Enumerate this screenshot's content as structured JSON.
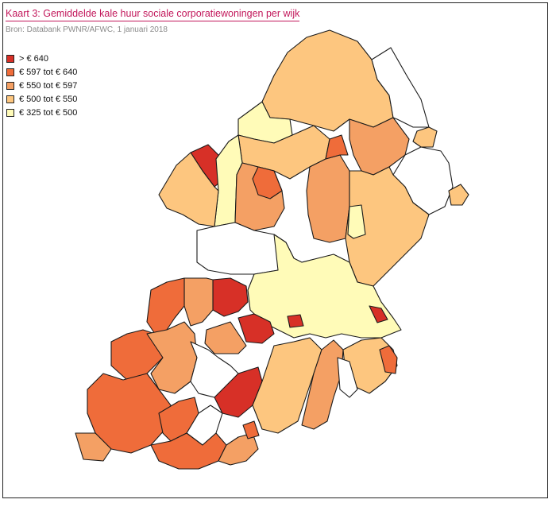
{
  "title": "Kaart 3: Gemiddelde kale huur sociale corporatiewoningen per wijk",
  "source": "Bron: Databank PWNR/AFWC, 1 januari 2018",
  "legend": [
    {
      "label": "> € 640",
      "color": "#d73027"
    },
    {
      "label": "€ 597 tot € 640",
      "color": "#ef6c3a"
    },
    {
      "label": "€ 550 tot € 597",
      "color": "#f4a064"
    },
    {
      "label": "€ 500 tot € 550",
      "color": "#fdc67f"
    },
    {
      "label": "€ 325 tot € 500",
      "color": "#fffbb8"
    }
  ],
  "colors": {
    "class1": "#d73027",
    "class2": "#ef6c3a",
    "class3": "#f4a064",
    "class4": "#fdc67f",
    "class5": "#fffbb8",
    "nodata": "#ffffff"
  }
}
